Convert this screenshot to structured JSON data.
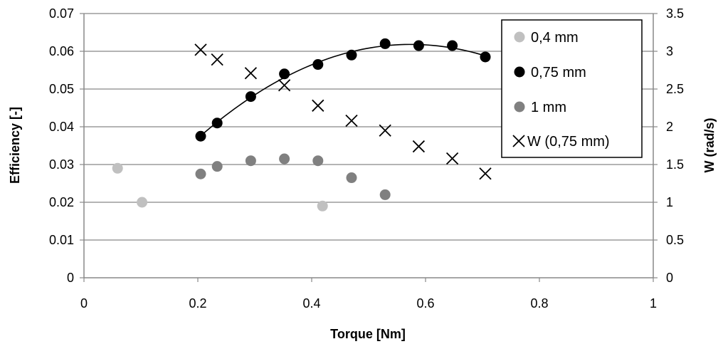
{
  "chart_data": {
    "type": "scatter",
    "xlabel": "Torque [Nm]",
    "ylabel": "Efficiency [-]",
    "y2label": "W (rad/s)",
    "xlim": [
      0,
      1
    ],
    "ylim": [
      0,
      0.07
    ],
    "y2lim": [
      0,
      3.5
    ],
    "xticks": [
      "0",
      "0.2",
      "0.4",
      "0.6",
      "0.8",
      "1"
    ],
    "yticks": [
      "0",
      "0.01",
      "0.02",
      "0.03",
      "0.04",
      "0.05",
      "0.06",
      "0.07"
    ],
    "y2ticks": [
      "0",
      "0.5",
      "1",
      "1.5",
      "2",
      "2.5",
      "3",
      "3.5"
    ],
    "grid": "horizontal",
    "legend_position": "top-right",
    "series": [
      {
        "name": "0,4 mm",
        "axis": "left",
        "marker": "circle",
        "color": "#c0c0c0",
        "points": [
          [
            0.059,
            0.029
          ],
          [
            0.102,
            0.02
          ],
          [
            0.419,
            0.019
          ]
        ]
      },
      {
        "name": "0,75 mm",
        "axis": "left",
        "marker": "circle",
        "color": "#000000",
        "trendline": true,
        "points": [
          [
            0.205,
            0.0375
          ],
          [
            0.234,
            0.041
          ],
          [
            0.293,
            0.048
          ],
          [
            0.352,
            0.054
          ],
          [
            0.411,
            0.0565
          ],
          [
            0.47,
            0.059
          ],
          [
            0.529,
            0.062
          ],
          [
            0.588,
            0.0615
          ],
          [
            0.647,
            0.0615
          ],
          [
            0.705,
            0.0585
          ]
        ]
      },
      {
        "name": "1 mm",
        "axis": "left",
        "marker": "circle",
        "color": "#808080",
        "points": [
          [
            0.205,
            0.0275
          ],
          [
            0.234,
            0.0295
          ],
          [
            0.293,
            0.031
          ],
          [
            0.352,
            0.0315
          ],
          [
            0.411,
            0.031
          ],
          [
            0.47,
            0.0265
          ],
          [
            0.529,
            0.022
          ]
        ]
      },
      {
        "name": "W (0,75 mm)",
        "axis": "right",
        "marker": "x",
        "color": "#000000",
        "points": [
          [
            0.205,
            3.02
          ],
          [
            0.234,
            2.89
          ],
          [
            0.293,
            2.71
          ],
          [
            0.352,
            2.55
          ],
          [
            0.411,
            2.28
          ],
          [
            0.47,
            2.08
          ],
          [
            0.529,
            1.95
          ],
          [
            0.588,
            1.74
          ],
          [
            0.647,
            1.58
          ],
          [
            0.705,
            1.38
          ]
        ]
      }
    ]
  }
}
